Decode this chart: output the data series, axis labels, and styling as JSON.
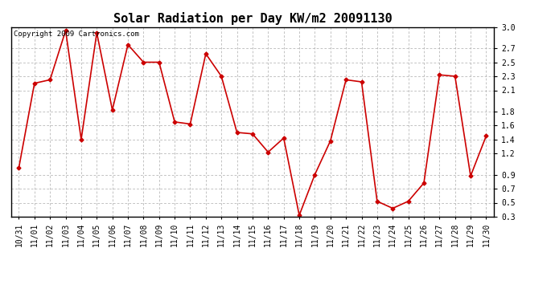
{
  "title": "Solar Radiation per Day KW/m2 20091130",
  "copyright": "Copyright 2009 Cartronics.com",
  "labels": [
    "10/31",
    "11/01",
    "11/02",
    "11/03",
    "11/04",
    "11/05",
    "11/06",
    "11/07",
    "11/08",
    "11/09",
    "11/10",
    "11/11",
    "11/12",
    "11/13",
    "11/14",
    "11/15",
    "11/16",
    "11/17",
    "11/18",
    "11/19",
    "11/20",
    "11/21",
    "11/22",
    "11/23",
    "11/24",
    "11/25",
    "11/26",
    "11/27",
    "11/28",
    "11/29",
    "11/30"
  ],
  "values": [
    1.0,
    2.2,
    2.25,
    2.95,
    1.4,
    2.92,
    1.82,
    2.75,
    2.5,
    2.5,
    1.65,
    1.62,
    2.62,
    2.3,
    1.5,
    1.48,
    1.22,
    1.42,
    0.32,
    0.9,
    1.38,
    2.25,
    2.22,
    0.52,
    0.42,
    0.52,
    0.78,
    2.32,
    2.3,
    0.88,
    1.45
  ],
  "line_color": "#cc0000",
  "marker": "D",
  "marker_size": 2.5,
  "bg_color": "#ffffff",
  "grid_color": "#aaaaaa",
  "ylim": [
    0.3,
    3.0
  ],
  "yticks": [
    0.3,
    0.5,
    0.7,
    0.9,
    1.2,
    1.4,
    1.6,
    1.8,
    2.1,
    2.3,
    2.5,
    2.7,
    3.0
  ],
  "title_fontsize": 11,
  "copyright_fontsize": 6.5,
  "tick_fontsize": 7,
  "xlabel_fontsize": 7
}
